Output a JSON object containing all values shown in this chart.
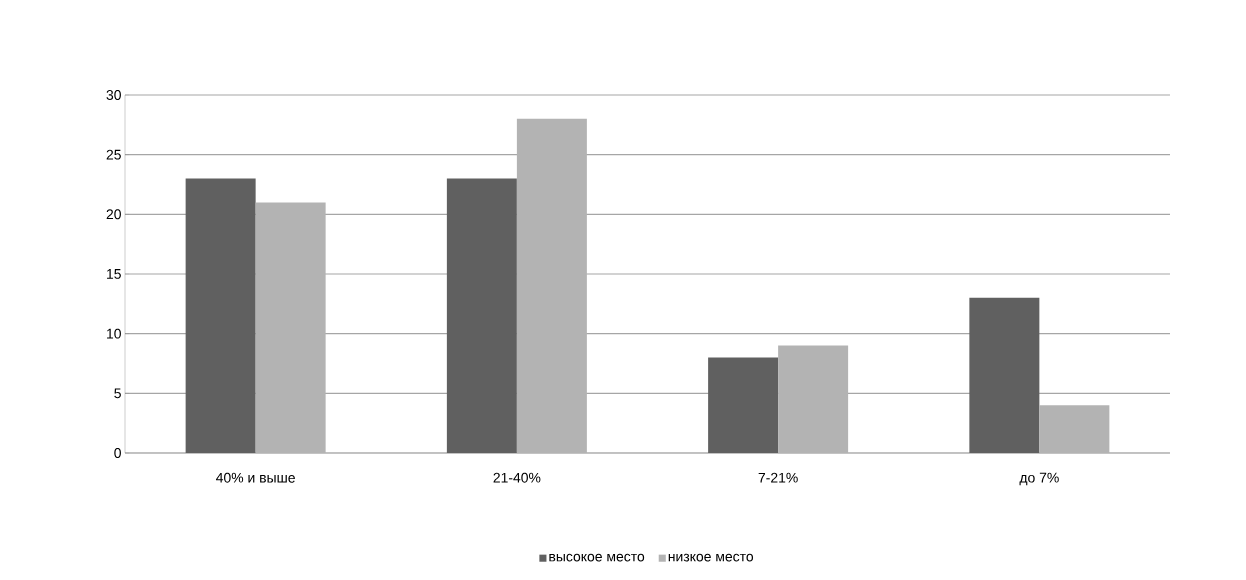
{
  "chart_data": {
    "type": "bar",
    "categories": [
      "40% и выше",
      "21-40%",
      "7-21%",
      "до 7%"
    ],
    "series": [
      {
        "name": "высокое место",
        "color": "#606060",
        "values": [
          23,
          23,
          8,
          13
        ]
      },
      {
        "name": "низкое место",
        "color": "#b3b3b3",
        "values": [
          21,
          28,
          9,
          4
        ]
      }
    ],
    "ylim": [
      0,
      30
    ],
    "yticks": [
      0,
      5,
      10,
      15,
      20,
      25,
      30
    ],
    "grid": "y",
    "legend": "bottom"
  }
}
